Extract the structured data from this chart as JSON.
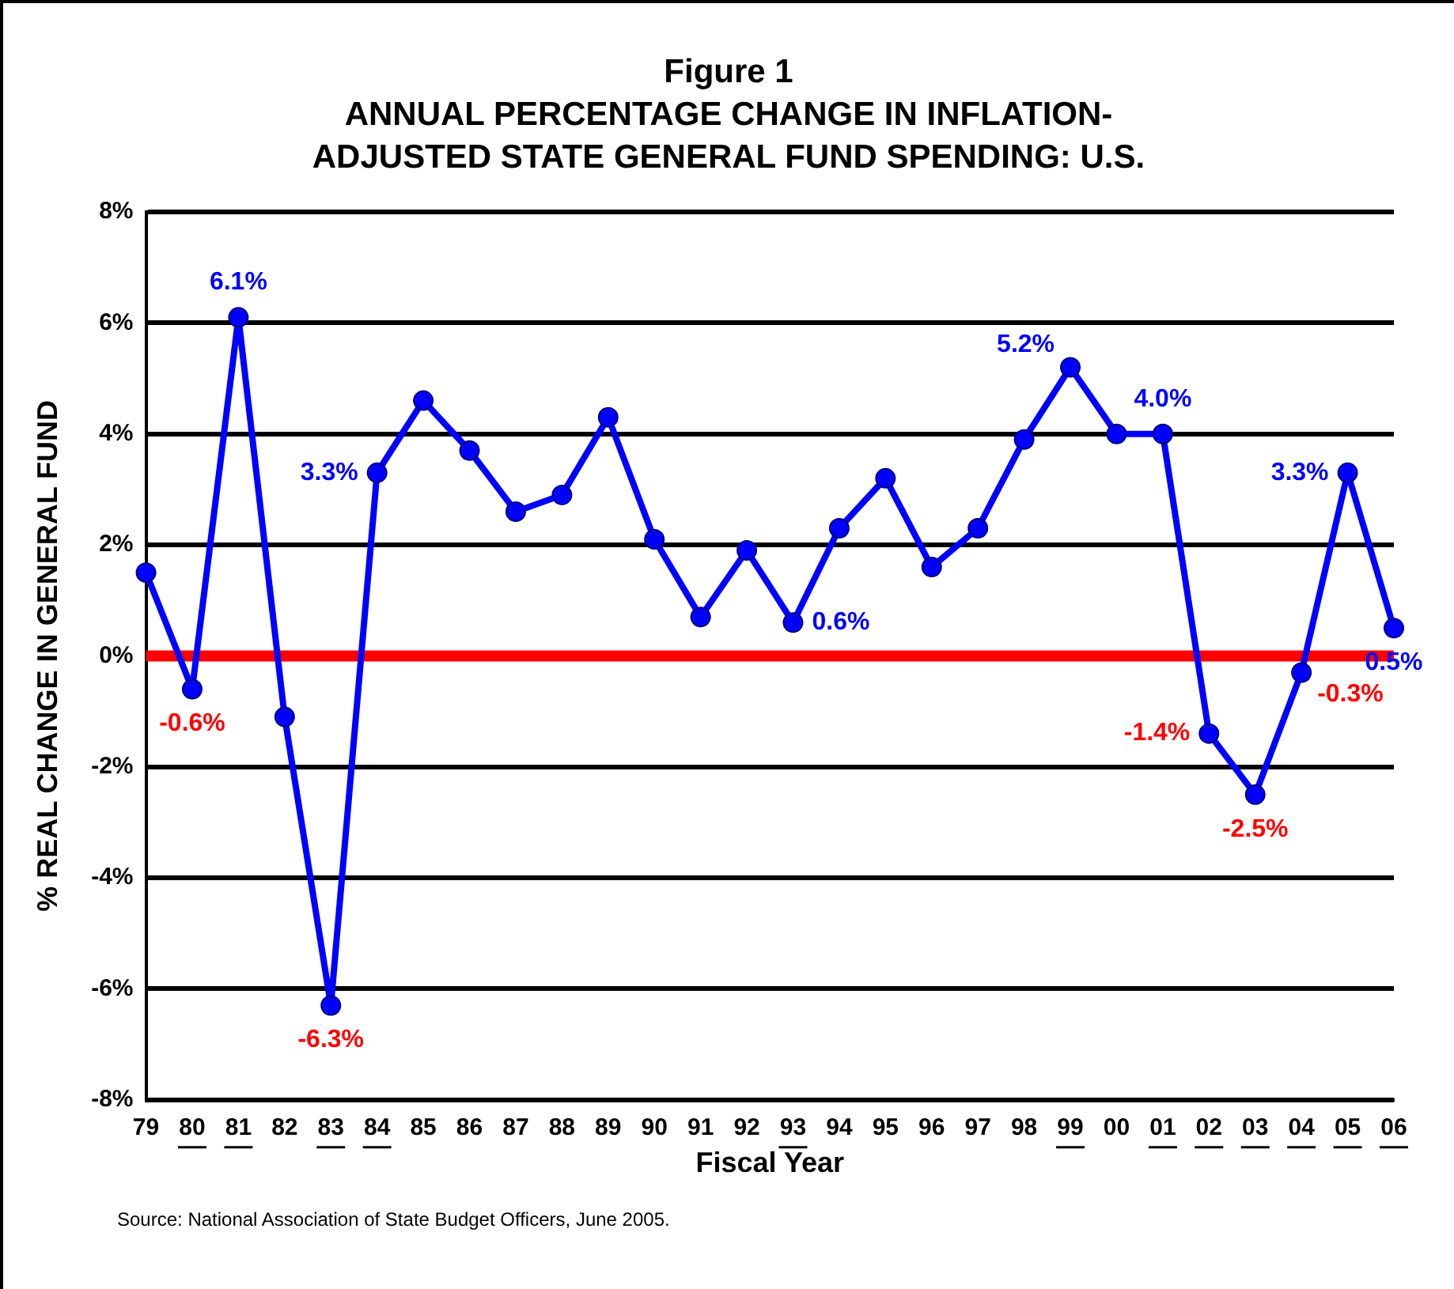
{
  "chart_data": {
    "type": "line",
    "title": "Figure 1",
    "subtitle": "ANNUAL PERCENTAGE CHANGE IN INFLATION-ADJUSTED STATE GENERAL FUND SPENDING: U.S.",
    "xlabel": "Fiscal Year",
    "ylabel": "% REAL CHANGE IN GENERAL FUND",
    "categories": [
      "79",
      "80",
      "81",
      "82",
      "83",
      "84",
      "85",
      "86",
      "87",
      "88",
      "89",
      "90",
      "91",
      "92",
      "93",
      "94",
      "95",
      "96",
      "97",
      "98",
      "99",
      "00",
      "01",
      "02",
      "03",
      "04",
      "05",
      "06"
    ],
    "series": [
      {
        "color": "#0000ff",
        "values": [
          1.5,
          -0.6,
          6.1,
          -1.1,
          -6.3,
          3.3,
          4.6,
          3.7,
          2.6,
          2.9,
          4.3,
          2.1,
          0.7,
          1.9,
          0.6,
          2.3,
          3.2,
          1.6,
          2.3,
          3.9,
          5.2,
          4.0,
          4.0,
          -1.4,
          -2.5,
          -0.3,
          3.3,
          0.5
        ],
        "value_labels": [
          null,
          "-0.6%",
          "6.1%",
          null,
          "-6.3%",
          "3.3%",
          null,
          null,
          null,
          null,
          null,
          null,
          null,
          null,
          "0.6%",
          null,
          null,
          null,
          null,
          null,
          "5.2%",
          null,
          "4.0%",
          "-1.4%",
          "-2.5%",
          "-0.3%",
          "3.3%",
          "0.5%"
        ]
      }
    ],
    "ylim": [
      -8,
      8
    ],
    "yticks": [
      {
        "value": -8,
        "label": "-8%"
      },
      {
        "value": -6,
        "label": "-6%"
      },
      {
        "value": -4,
        "label": "-4%"
      },
      {
        "value": -2,
        "label": "-2%"
      },
      {
        "value": 0,
        "label": "0%"
      },
      {
        "value": 2,
        "label": "2%"
      },
      {
        "value": 4,
        "label": "4%"
      },
      {
        "value": 6,
        "label": "6%"
      },
      {
        "value": 8,
        "label": "8%"
      }
    ],
    "grid": "y",
    "legend": false,
    "marker": "circle",
    "line_style": "solid",
    "ref_lines": [
      {
        "axis": "y",
        "value": 0,
        "color": "#ff0000"
      }
    ],
    "annotations": [
      "Source: National Association of State Budget Officers, June  2005."
    ]
  }
}
